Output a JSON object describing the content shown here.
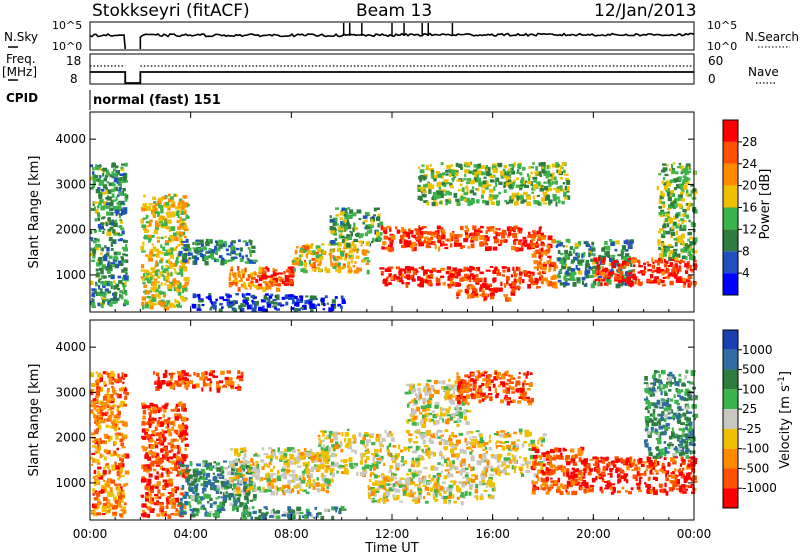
{
  "header": {
    "station": "Stokkseyri (fitACF)",
    "beam": "Beam 13",
    "date": "12/Jan/2013"
  },
  "noise_panel": {
    "left_label": "N.Sky",
    "right_label": "N.Search",
    "left_ticks": [
      "10^5",
      "10^0"
    ],
    "right_ticks": [
      "10^5",
      "10^0"
    ]
  },
  "freq_panel": {
    "left_label_1": "Freq.",
    "left_label_2": "[MHz]",
    "right_label": "Nave",
    "left_ticks": [
      "18",
      "8"
    ],
    "right_ticks": [
      "60",
      "0"
    ]
  },
  "cpid": {
    "label": "CPID",
    "value": "normal (fast) 151"
  },
  "x_axis": {
    "label": "Time UT",
    "ticks": [
      "00:00",
      "04:00",
      "08:00",
      "12:00",
      "16:00",
      "20:00",
      "00:00"
    ]
  },
  "chart_data": [
    {
      "type": "heatmap",
      "name": "power",
      "xlabel": "Time UT",
      "ylabel": "Slant Range [km]",
      "xlim": [
        0,
        24
      ],
      "ylim": [
        180,
        4600
      ],
      "y_ticks": [
        1000,
        2000,
        3000,
        4000
      ],
      "colorbar": {
        "label": "Power [dB]",
        "ticks": [
          "4",
          "8",
          "12",
          "16",
          "20",
          "24",
          "28"
        ],
        "colors": [
          "#0000ff",
          "#1f4fbf",
          "#2e7d3f",
          "#3cb44b",
          "#f0c000",
          "#ff8c00",
          "#ff5000",
          "#ff0000"
        ]
      },
      "regions": [
        {
          "x": [
            0.0,
            1.4
          ],
          "y": [
            300,
            3500
          ],
          "level": 0.35
        },
        {
          "x": [
            2.0,
            3.8
          ],
          "y": [
            300,
            2800
          ],
          "level": 0.55
        },
        {
          "x": [
            3.5,
            6.5
          ],
          "y": [
            1300,
            1800
          ],
          "level": 0.3
        },
        {
          "x": [
            5.5,
            7.5
          ],
          "y": [
            700,
            1200
          ],
          "level": 0.7
        },
        {
          "x": [
            6.5,
            8.0
          ],
          "y": [
            800,
            1200
          ],
          "level": 0.95
        },
        {
          "x": [
            8.0,
            11.0
          ],
          "y": [
            1100,
            1700
          ],
          "level": 0.6
        },
        {
          "x": [
            9.5,
            11.5
          ],
          "y": [
            1700,
            2500
          ],
          "level": 0.4
        },
        {
          "x": [
            11.5,
            18.0
          ],
          "y": [
            1600,
            2100
          ],
          "level": 0.85
        },
        {
          "x": [
            11.5,
            17.5
          ],
          "y": [
            800,
            1200
          ],
          "level": 0.9
        },
        {
          "x": [
            14.5,
            17.0
          ],
          "y": [
            500,
            800
          ],
          "level": 0.85
        },
        {
          "x": [
            13.0,
            19.0
          ],
          "y": [
            2600,
            3500
          ],
          "level": 0.45
        },
        {
          "x": [
            17.5,
            18.5
          ],
          "y": [
            700,
            1900
          ],
          "level": 0.8
        },
        {
          "x": [
            18.5,
            21.5
          ],
          "y": [
            800,
            1800
          ],
          "level": 0.35
        },
        {
          "x": [
            20.0,
            24.0
          ],
          "y": [
            800,
            1400
          ],
          "level": 0.9
        },
        {
          "x": [
            22.5,
            24.0
          ],
          "y": [
            1400,
            3500
          ],
          "level": 0.45
        },
        {
          "x": [
            4.0,
            10.0
          ],
          "y": [
            250,
            600
          ],
          "level": 0.15
        }
      ]
    },
    {
      "type": "heatmap",
      "name": "velocity",
      "xlabel": "Time UT",
      "ylabel": "Slant Range [km]",
      "xlim": [
        0,
        24
      ],
      "ylim": [
        180,
        4600
      ],
      "y_ticks": [
        1000,
        2000,
        3000,
        4000
      ],
      "colorbar": {
        "label": "Velocity [m s^-1]",
        "ticks": [
          "1000",
          "500",
          "100",
          "25",
          "-25",
          "-100",
          "-500",
          "-1000"
        ],
        "colors": [
          "#1a3fb0",
          "#2e6da4",
          "#2e7d3f",
          "#3cb44b",
          "#c8c8c0",
          "#f0c000",
          "#ff8c00",
          "#ff5000",
          "#ff0000"
        ]
      },
      "regions": [
        {
          "x": [
            0.0,
            1.4
          ],
          "y": [
            300,
            3500
          ],
          "level": 0.75
        },
        {
          "x": [
            2.0,
            3.8
          ],
          "y": [
            300,
            2800
          ],
          "level": 0.85
        },
        {
          "x": [
            3.5,
            6.5
          ],
          "y": [
            300,
            1500
          ],
          "level": 0.3
        },
        {
          "x": [
            5.5,
            9.5
          ],
          "y": [
            800,
            1800
          ],
          "level": 0.55
        },
        {
          "x": [
            9.0,
            18.0
          ],
          "y": [
            1200,
            2200
          ],
          "level": 0.55
        },
        {
          "x": [
            11.0,
            16.0
          ],
          "y": [
            600,
            1200
          ],
          "level": 0.55
        },
        {
          "x": [
            12.5,
            15.0
          ],
          "y": [
            2300,
            3300
          ],
          "level": 0.55
        },
        {
          "x": [
            14.5,
            17.5
          ],
          "y": [
            2800,
            3500
          ],
          "level": 0.85
        },
        {
          "x": [
            17.5,
            19.5
          ],
          "y": [
            800,
            1800
          ],
          "level": 0.85
        },
        {
          "x": [
            19.5,
            24.0
          ],
          "y": [
            800,
            1600
          ],
          "level": 0.9
        },
        {
          "x": [
            22.0,
            24.0
          ],
          "y": [
            1600,
            3500
          ],
          "level": 0.3
        },
        {
          "x": [
            2.5,
            6.0
          ],
          "y": [
            3100,
            3500
          ],
          "level": 0.85
        },
        {
          "x": [
            6.0,
            10.0
          ],
          "y": [
            250,
            500
          ],
          "level": 0.3
        }
      ]
    }
  ]
}
